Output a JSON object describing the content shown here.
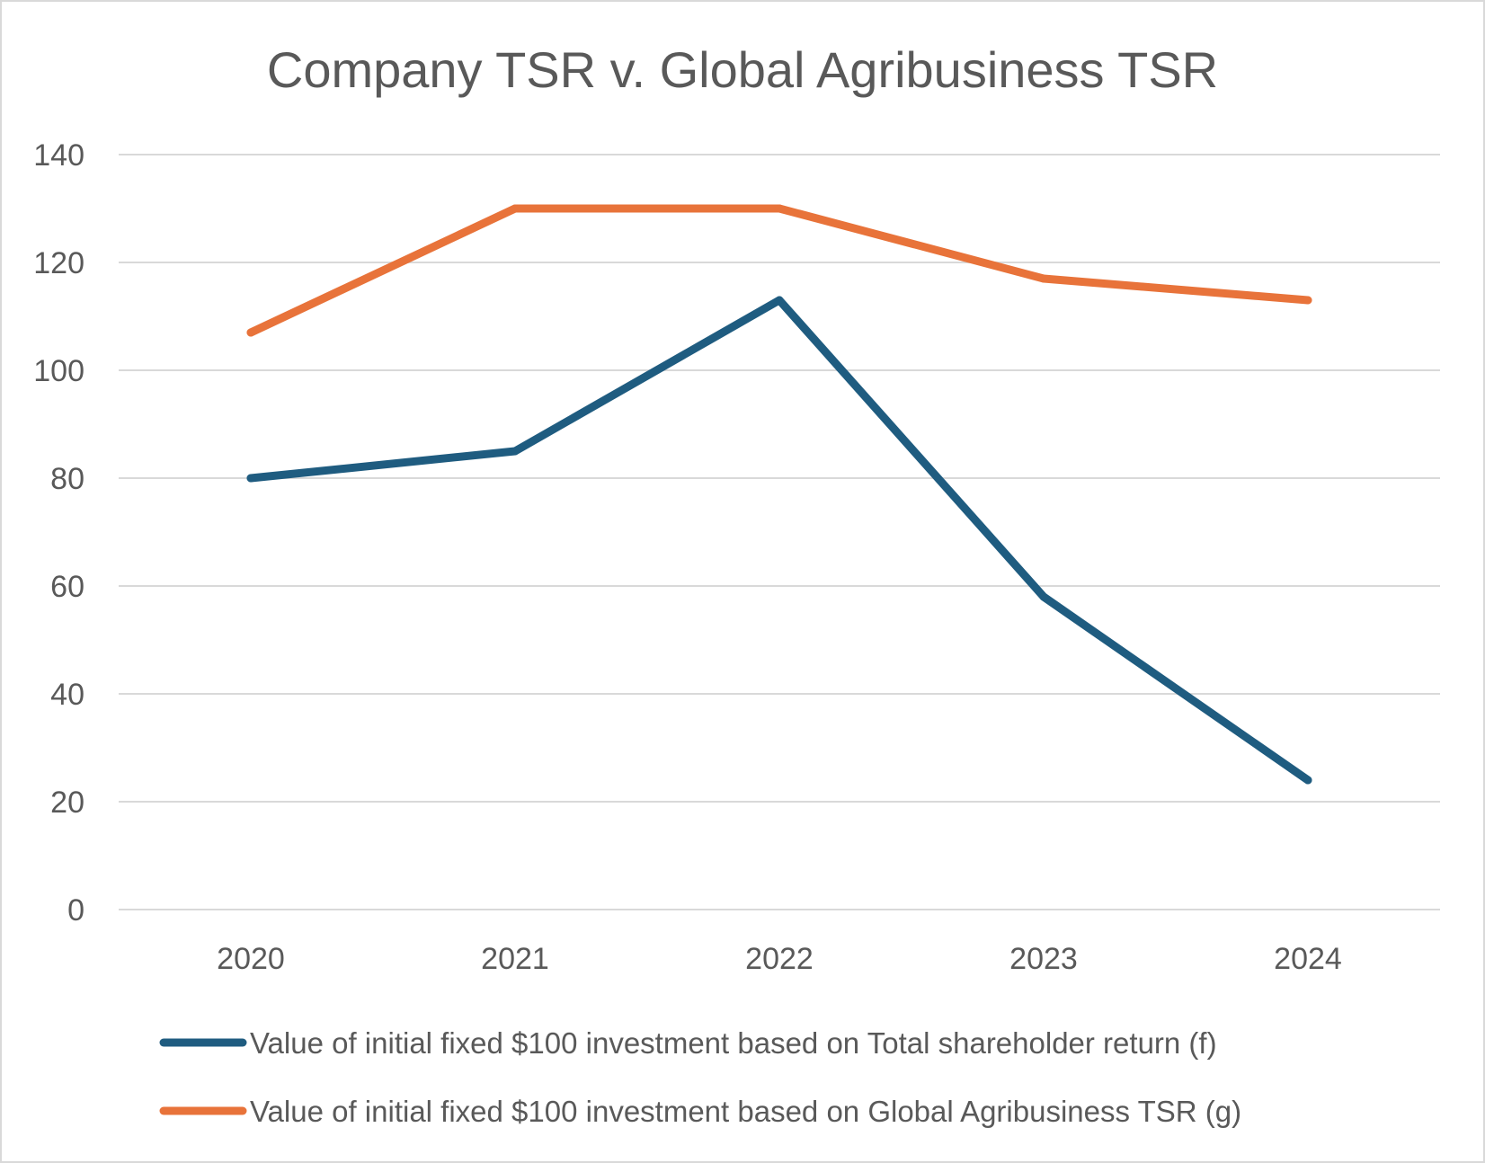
{
  "chart_data": {
    "type": "line",
    "title": "Company TSR v. Global Agribusiness TSR",
    "xlabel": "",
    "ylabel": "",
    "categories": [
      "2020",
      "2021",
      "2022",
      "2023",
      "2024"
    ],
    "ylim": [
      0,
      140
    ],
    "yticks": [
      0,
      20,
      40,
      60,
      80,
      100,
      120,
      140
    ],
    "grid": true,
    "legend_position": "bottom",
    "series": [
      {
        "name": "Value of initial fixed $100 investment based on Total shareholder return (f)",
        "color": "#1f5c80",
        "values": [
          80,
          85,
          113,
          58,
          24
        ]
      },
      {
        "name": "Value of initial fixed $100 investment based on Global Agribusiness TSR (g)",
        "color": "#e8733a",
        "values": [
          107,
          130,
          130,
          117,
          113
        ]
      }
    ]
  }
}
